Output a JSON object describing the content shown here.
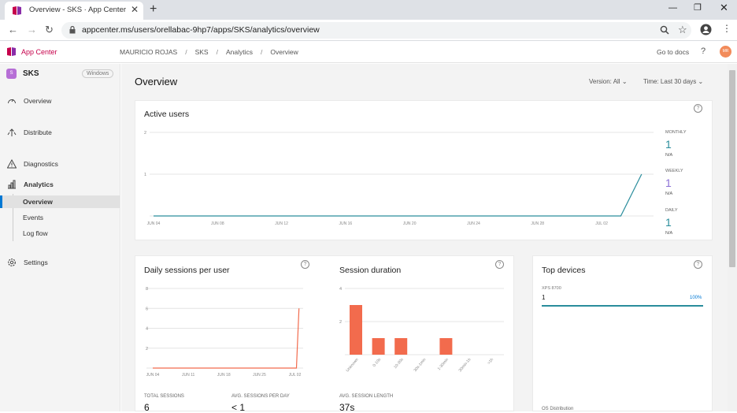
{
  "browser": {
    "tab_title": "Overview - SKS · App Center",
    "url": "appcenter.ms/users/orellabac-9hp7/apps/SKS/analytics/overview"
  },
  "header": {
    "brand": "App Center",
    "breadcrumbs": [
      "MAURICIO ROJAS",
      "SKS",
      "Analytics",
      "Overview"
    ],
    "go_to_docs": "Go to docs",
    "help": "?",
    "avatar_initials": "MR"
  },
  "sidebar": {
    "app_name": "SKS",
    "platform": "Windows",
    "app_icon_letter": "S",
    "items": [
      {
        "label": "Overview",
        "icon": "gauge-icon"
      },
      {
        "label": "Distribute",
        "icon": "distribute-icon"
      },
      {
        "label": "Diagnostics",
        "icon": "warning-icon"
      },
      {
        "label": "Analytics",
        "icon": "bar-chart-icon"
      },
      {
        "label": "Settings",
        "icon": "gear-icon"
      }
    ],
    "analytics_sub": [
      "Overview",
      "Events",
      "Log flow"
    ]
  },
  "main": {
    "title": "Overview",
    "version_label": "Version: All",
    "time_label": "Time: Last 30 days"
  },
  "active_users": {
    "title": "Active users",
    "stats": [
      {
        "name": "MONTHLY",
        "value": "1",
        "change": "N/A",
        "color": "#2a8d9c"
      },
      {
        "name": "WEEKLY",
        "value": "1",
        "change": "N/A",
        "color": "#8b6fd6"
      },
      {
        "name": "DAILY",
        "value": "1",
        "change": "N/A",
        "color": "#2a8d9c"
      }
    ]
  },
  "daily_sessions": {
    "title": "Daily sessions per user",
    "total_label": "TOTAL SESSIONS",
    "total_value": "6",
    "avg_label": "AVG. SESSIONS PER DAY",
    "avg_value": "< 1"
  },
  "session_duration": {
    "title": "Session duration",
    "avg_label": "AVG. SESSION LENGTH",
    "avg_value": "37s"
  },
  "top_devices": {
    "title": "Top devices",
    "device": "XPS 8700",
    "count": "1",
    "percent": "100%",
    "share": 1.0,
    "os_label": "OS Distribution"
  },
  "chart_data": [
    {
      "type": "line",
      "title": "Active users",
      "x": [
        "JUN 04",
        "JUN 08",
        "JUN 12",
        "JUN 16",
        "JUN 20",
        "JUN 24",
        "JUN 28",
        "JUL 02"
      ],
      "yticks": [
        "1",
        "2"
      ],
      "ylim": [
        0,
        2
      ],
      "series": [
        {
          "name": "MONTHLY",
          "color": "#2a8d9c",
          "points": [
            [
              0,
              0
            ],
            [
              29.2,
              0
            ],
            [
              30.5,
              1
            ]
          ]
        }
      ]
    },
    {
      "type": "line",
      "title": "Daily sessions per user",
      "x": [
        "JUN 04",
        "JUN 11",
        "JUN 18",
        "JUN 25",
        "JUL 02"
      ],
      "yticks": [
        "2",
        "4",
        "6",
        "8"
      ],
      "ylim": [
        0,
        8
      ],
      "series": [
        {
          "color": "#f26b4d",
          "points": [
            [
              0,
              0
            ],
            [
              28.3,
              0
            ],
            [
              28.8,
              6
            ]
          ]
        }
      ]
    },
    {
      "type": "bar",
      "title": "Session duration",
      "categories": [
        "Unknown",
        "0-10s",
        "10-30s",
        "30s-1min",
        "1-30min",
        "30min-1h",
        ">1h"
      ],
      "values": [
        3,
        1,
        1,
        0,
        1,
        0,
        0
      ],
      "yticks": [
        "2",
        "4"
      ],
      "ylim": [
        0,
        4
      ],
      "color": "#f26b4d"
    }
  ]
}
